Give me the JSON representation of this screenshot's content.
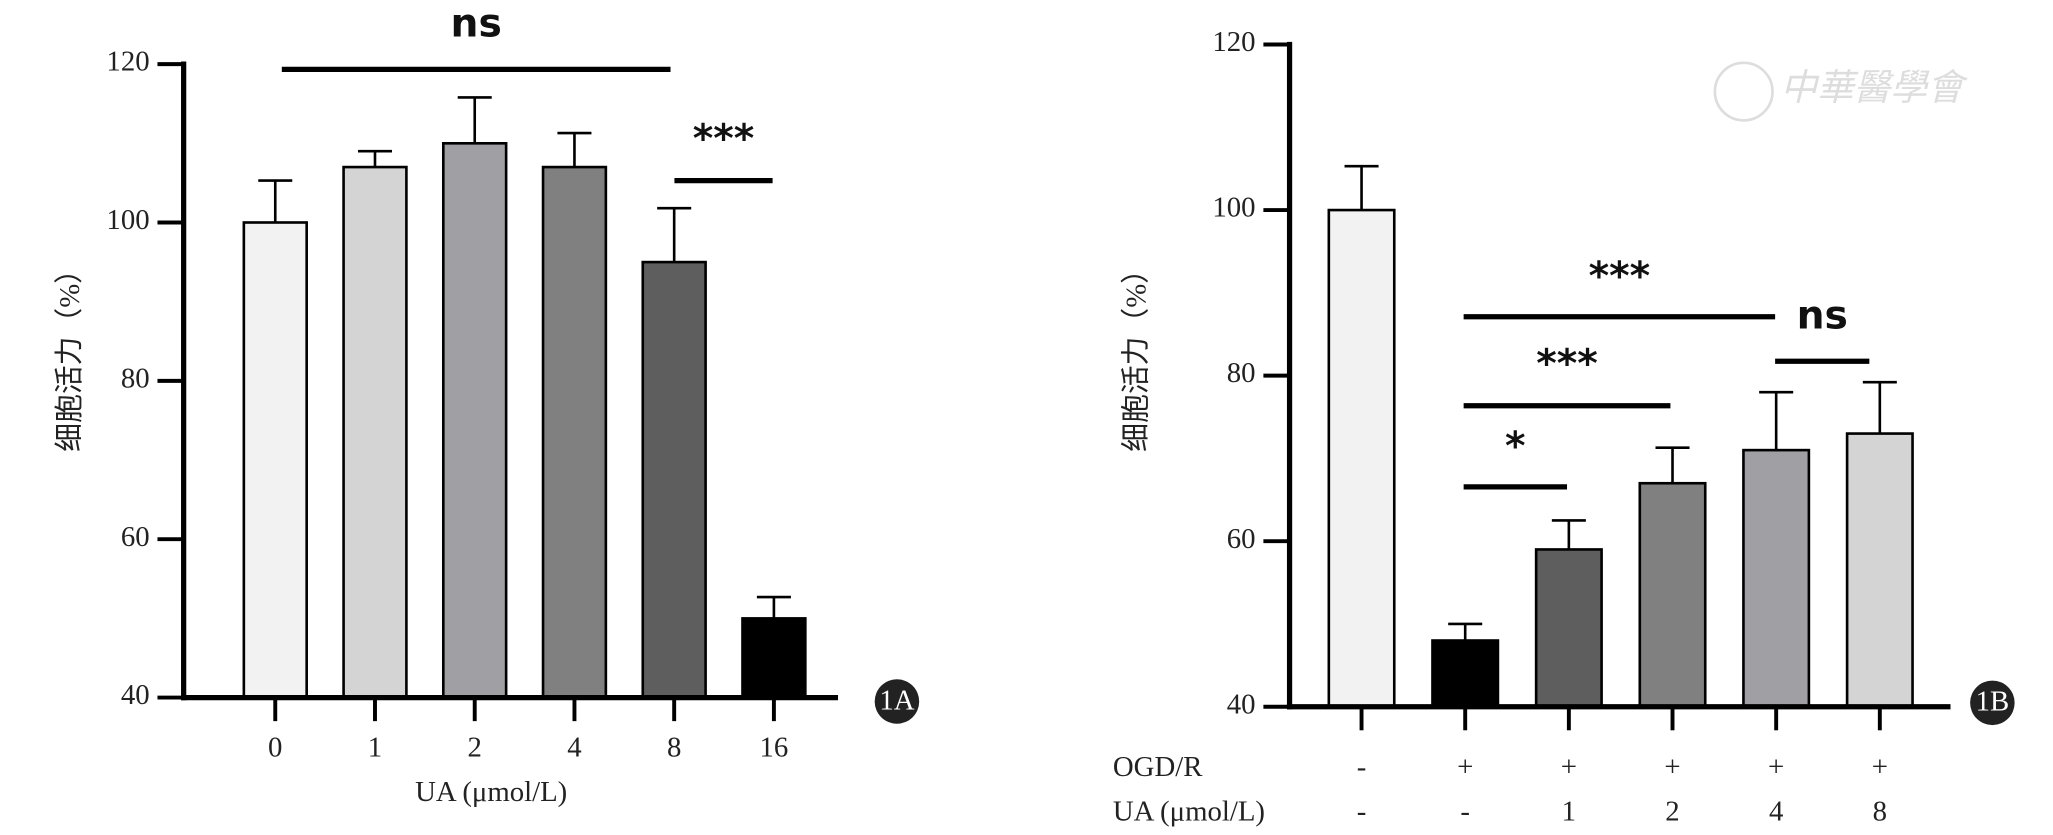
{
  "chart_data": [
    {
      "type": "bar",
      "panel": "1A",
      "y_label": "细胞活力（%）",
      "x_label": "UA (μmol/L)",
      "categories": [
        "0",
        "1",
        "2",
        "4",
        "8",
        "16"
      ],
      "values": [
        100,
        107,
        110,
        107,
        95,
        50
      ],
      "errors": [
        5.3,
        2,
        5.8,
        4.3,
        6.8,
        2.7
      ],
      "colors": [
        "#f2f2f2",
        "#d4d4d4",
        "#a0a0a4",
        "#808080",
        "#5e5e5e",
        "#000000"
      ],
      "ylim": [
        40,
        120
      ],
      "yticks": [
        40,
        60,
        80,
        100,
        120
      ],
      "annotations": [
        "ns",
        "***"
      ]
    },
    {
      "type": "bar",
      "panel": "1B",
      "y_label": "细胞活力（%）",
      "row_labels": [
        "OGD/R",
        "UA (μmol/L)"
      ],
      "categories": [
        [
          "-",
          "-"
        ],
        [
          "+",
          "-"
        ],
        [
          "+",
          "1"
        ],
        [
          "+",
          "2"
        ],
        [
          "+",
          "4"
        ],
        [
          "+",
          "8"
        ]
      ],
      "values": [
        100,
        48,
        59,
        67,
        71,
        73
      ],
      "errors": [
        5.3,
        2,
        3.5,
        4.3,
        7,
        6.2
      ],
      "colors": [
        "#f2f2f2",
        "#000000",
        "#5e5e5e",
        "#808080",
        "#a0a0a4",
        "#d4d4d4"
      ],
      "ylim": [
        40,
        120
      ],
      "yticks": [
        40,
        60,
        80,
        100,
        120
      ],
      "annotations": [
        "***",
        "ns",
        "***",
        "*"
      ],
      "watermark": "中華醫學會"
    }
  ]
}
